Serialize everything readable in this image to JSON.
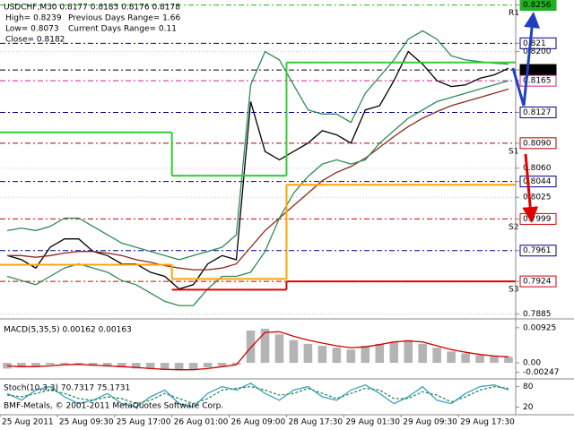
{
  "chart_data": [
    {
      "type": "line",
      "title": "USDCHF,M30  0.8177 0.8183 0.8176 0.8178",
      "info_left": [
        "High= 0.8239",
        "Low= 0.8073",
        "Close= 0.8182"
      ],
      "info_right": [
        "Previous Days Range= 1.66",
        "Current Days Range= 0.11"
      ],
      "categories": [
        "25 Aug 2011",
        null,
        null,
        null,
        "25 Aug 09:30",
        null,
        null,
        null,
        "25 Aug 17:00",
        null,
        null,
        null,
        "26 Aug 01:00",
        null,
        null,
        null,
        "26 Aug 09:00",
        null,
        null,
        null,
        "28 Aug 17:30",
        null,
        null,
        null,
        "29 Aug 01:30",
        null,
        null,
        null,
        "29 Aug 09:30",
        null,
        null,
        null,
        "29 Aug 17:30",
        null,
        null,
        null
      ],
      "series": [
        {
          "color": "#000000",
          "values": [
            0.7955,
            0.795,
            0.794,
            0.7965,
            0.7975,
            0.7975,
            0.796,
            0.7955,
            0.7945,
            0.7945,
            0.7935,
            0.793,
            0.7915,
            0.792,
            0.7945,
            0.7955,
            0.795,
            0.814,
            0.808,
            0.807,
            0.808,
            0.809,
            0.8105,
            0.81,
            0.809,
            0.813,
            0.8135,
            0.8165,
            0.82,
            0.8185,
            0.8165,
            0.8158,
            0.816,
            0.8168,
            0.8172,
            0.818
          ]
        },
        {
          "color": "#8b2a1a",
          "values": [
            0.7955,
            0.7955,
            0.7953,
            0.7955,
            0.7958,
            0.796,
            0.796,
            0.7958,
            0.7955,
            0.795,
            0.7947,
            0.7943,
            0.794,
            0.7938,
            0.7938,
            0.794,
            0.7945,
            0.7965,
            0.7985,
            0.8,
            0.8015,
            0.803,
            0.8045,
            0.8055,
            0.8062,
            0.8072,
            0.8085,
            0.8098,
            0.811,
            0.812,
            0.8128,
            0.8135,
            0.814,
            0.8145,
            0.815,
            0.8155
          ]
        },
        {
          "color": "#2e8b57",
          "values": [
            0.7985,
            0.7988,
            0.7985,
            0.799,
            0.8,
            0.8,
            0.799,
            0.798,
            0.797,
            0.7965,
            0.796,
            0.7955,
            0.795,
            0.7955,
            0.796,
            0.7965,
            0.798,
            0.816,
            0.82,
            0.819,
            0.816,
            0.813,
            0.8125,
            0.8125,
            0.8115,
            0.815,
            0.817,
            0.819,
            0.8215,
            0.8225,
            0.8215,
            0.8195,
            0.819,
            0.8188,
            0.8186,
            0.8185
          ]
        },
        {
          "color": "#2e8b57",
          "values": [
            0.793,
            0.7925,
            0.792,
            0.793,
            0.794,
            0.7945,
            0.794,
            0.7935,
            0.7925,
            0.792,
            0.791,
            0.79,
            0.7895,
            0.7895,
            0.7915,
            0.793,
            0.793,
            0.7935,
            0.796,
            0.8,
            0.803,
            0.805,
            0.8065,
            0.807,
            0.8065,
            0.807,
            0.809,
            0.8105,
            0.812,
            0.813,
            0.814,
            0.8145,
            0.815,
            0.8155,
            0.816,
            0.8165
          ]
        },
        {
          "color": "#32cd32",
          "style": "step",
          "values": [
            0.8103,
            0.8103,
            0.8103,
            0.8103,
            0.8103,
            0.8103,
            0.8103,
            0.8103,
            0.8103,
            0.8103,
            0.8103,
            0.8103,
            0.8051,
            0.8051,
            0.8051,
            0.8051,
            0.8051,
            0.8051,
            0.8051,
            0.8051,
            0.8187,
            0.8187,
            0.8187,
            0.8187,
            0.8187,
            0.8187,
            0.8187,
            0.8187,
            0.8187,
            0.8187,
            0.8187,
            0.8187,
            0.8187,
            0.8187,
            0.8187,
            0.8187
          ]
        },
        {
          "color": "#ffa500",
          "style": "step",
          "values": [
            0.7944,
            0.7944,
            0.7944,
            0.7944,
            0.7944,
            0.7944,
            0.7944,
            0.7944,
            0.7944,
            0.7944,
            0.7944,
            0.7944,
            0.7927,
            0.7927,
            0.7927,
            0.7927,
            0.7927,
            0.7927,
            0.7927,
            0.7927,
            0.804,
            0.804,
            0.804,
            0.804,
            0.804,
            0.804,
            0.804,
            0.804,
            0.804,
            0.804,
            0.804,
            0.804,
            0.804,
            0.804,
            0.804,
            0.804
          ]
        },
        {
          "color": "#e00000",
          "style": "step",
          "values": [
            null,
            null,
            null,
            null,
            null,
            null,
            null,
            null,
            null,
            null,
            null,
            null,
            0.7914,
            0.7914,
            0.7914,
            0.7914,
            0.7914,
            0.7914,
            0.7914,
            0.7914,
            0.7924,
            0.7924,
            0.7924,
            0.7924,
            0.7924,
            0.7924,
            0.7924,
            0.7924,
            0.7924,
            0.7924,
            0.7924,
            0.7924,
            0.7924,
            0.7924,
            0.7924,
            0.7924
          ]
        }
      ],
      "levels": [
        {
          "value": 0.8256,
          "color": "#22b022",
          "box": true
        },
        {
          "value": 0.821,
          "color": "#000090",
          "box": false
        },
        {
          "value": 0.8178,
          "color": "#000000",
          "box": true
        },
        {
          "value": 0.8165,
          "color": "#d0208a",
          "box": false
        },
        {
          "value": 0.8127,
          "color": "#000090",
          "box": false
        },
        {
          "value": 0.809,
          "color": "#b00000",
          "box": false
        },
        {
          "value": 0.8044,
          "color": "#000090",
          "box": false
        },
        {
          "value": 0.7999,
          "color": "#d00000",
          "box": false
        },
        {
          "value": 0.7961,
          "color": "#000090",
          "box": false
        },
        {
          "value": 0.7924,
          "color": "#d00000",
          "box": false
        }
      ],
      "annotations": [
        {
          "text": "R1",
          "value": 0.8256
        },
        {
          "text": "S1",
          "value": 0.809
        },
        {
          "text": "S2",
          "value": 0.7999
        },
        {
          "text": "S3",
          "value": 0.7924
        }
      ],
      "ylim": [
        0.788,
        0.8262
      ],
      "yticks": [
        0.8256,
        0.821,
        {
          "value": 0.82,
          "label": "0.8200"
        },
        0.8178,
        0.8165,
        0.8127,
        {
          "value": 0.809,
          "label": "0.8090"
        },
        {
          "value": 0.806,
          "label": "0.8060"
        },
        0.8044,
        0.8025,
        0.7999,
        0.7961,
        0.7924,
        0.7885
      ],
      "grid": true
    },
    {
      "type": "bar",
      "title": "MACD(5,35,5) 0.00162 0.00163",
      "series": [
        {
          "color": "#b4b4b4",
          "values": [
            -0.0015,
            -0.0012,
            -0.0008,
            -0.0005,
            -0.0003,
            -0.0005,
            -0.0008,
            -0.001,
            -0.0012,
            -0.0015,
            -0.0016,
            -0.0018,
            -0.002,
            -0.0018,
            -0.0012,
            -0.0008,
            -0.0005,
            0.0085,
            0.009,
            0.0075,
            0.006,
            0.005,
            0.0045,
            0.004,
            0.0035,
            0.0045,
            0.005,
            0.0055,
            0.006,
            0.005,
            0.004,
            0.003,
            0.0025,
            0.002,
            0.0018,
            0.0016
          ]
        },
        {
          "color": "#d00000",
          "type": "line",
          "values": [
            -0.0008,
            -0.001,
            -0.001,
            -0.0008,
            -0.0005,
            -0.0004,
            -0.0006,
            -0.0008,
            -0.001,
            -0.0012,
            -0.0015,
            -0.0017,
            -0.0018,
            -0.0018,
            -0.0015,
            -0.001,
            -0.0005,
            0.004,
            0.008,
            0.0082,
            0.007,
            0.006,
            0.0052,
            0.0045,
            0.004,
            0.0042,
            0.0048,
            0.0055,
            0.0058,
            0.0055,
            0.0045,
            0.0035,
            0.0028,
            0.0022,
            0.0018,
            0.0016
          ]
        }
      ],
      "ylim": [
        -0.004,
        0.0111
      ],
      "yticks": [
        0.00925,
        {
          "value": 0,
          "label": "0.00"
        },
        -0.00247
      ]
    },
    {
      "type": "line",
      "title": "Stoch(10,3,3) 70.7317 75.1731",
      "note": "BMF-Metals, © 2001-2011 MetaQuotes Software Corp.",
      "series": [
        {
          "color": "#3aa0c8",
          "values": [
            60,
            40,
            70,
            80,
            50,
            30,
            40,
            60,
            30,
            20,
            50,
            70,
            30,
            20,
            60,
            80,
            70,
            90,
            60,
            40,
            70,
            80,
            50,
            40,
            70,
            85,
            60,
            30,
            50,
            80,
            40,
            30,
            60,
            80,
            85,
            70
          ]
        },
        {
          "color": "#2e8b57",
          "dash": true,
          "values": [
            55,
            50,
            60,
            70,
            60,
            45,
            40,
            50,
            45,
            30,
            40,
            60,
            45,
            30,
            45,
            70,
            75,
            80,
            70,
            55,
            60,
            75,
            60,
            45,
            60,
            75,
            70,
            45,
            45,
            65,
            55,
            35,
            50,
            70,
            80,
            75
          ]
        }
      ],
      "ylim": [
        0,
        100
      ],
      "yticks": [
        80,
        20
      ]
    }
  ]
}
